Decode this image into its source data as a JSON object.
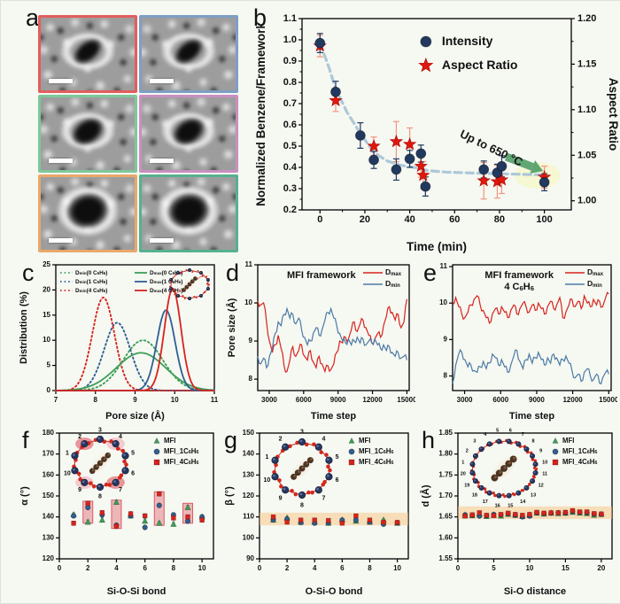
{
  "figure": {
    "panel_labels": {
      "a": "a",
      "b": "b",
      "c": "c",
      "d": "d",
      "e": "e",
      "f": "f",
      "g": "g",
      "h": "h"
    }
  },
  "colors": {
    "navy": "#22395f",
    "red": "#e3170d",
    "red_solid": "#d7231d",
    "green": "#3d9e57",
    "blue": "#2e6094",
    "steel": "#4a7aa5",
    "trend": "#adc8d9",
    "salmon": "#f2957f",
    "arrow_green": "#55a06b",
    "pink_bar": "rgba(226,103,112,0.45)",
    "pink_bar_edge": "rgba(213,80,90,0.9)",
    "orange_band": "rgba(247,196,128,0.5)",
    "halo_yellow": "rgba(246,246,190,0.6)"
  },
  "panel_a": {
    "frames": [
      {
        "border": "#e25d5d",
        "row": 1
      },
      {
        "border": "#7d9fc4",
        "row": 1
      },
      {
        "border": "#7ec89b",
        "row": 2
      },
      {
        "border": "#c98fc1",
        "row": 2
      },
      {
        "border": "#eaa86a",
        "row": 3
      },
      {
        "border": "#55b190",
        "row": 3
      }
    ]
  },
  "chart_data": [
    {
      "panel": "b",
      "type": "scatter",
      "xlabel": "Time (min)",
      "xlim": [
        -8,
        112
      ],
      "xticks": [
        0,
        20,
        40,
        60,
        80,
        100
      ],
      "xminor": [
        10,
        30,
        50,
        70,
        90
      ],
      "ylabel": "Normalized Benzene/Framework",
      "ylim": [
        0.2,
        1.1
      ],
      "yticks": [
        0.2,
        0.3,
        0.4,
        0.5,
        0.6,
        0.7,
        0.8,
        0.9,
        1.0,
        1.1
      ],
      "ydec": 1,
      "yminor": [
        0.25,
        0.35,
        0.45,
        0.55,
        0.65,
        0.75,
        0.85,
        0.95,
        1.05
      ],
      "ylabel_right": "Aspect Ratio",
      "ylim_right": [
        0.99,
        1.2
      ],
      "yticks_right": [
        1.0,
        1.05,
        1.1,
        1.15,
        1.2
      ],
      "yminor_right": [
        1.025,
        1.075,
        1.125,
        1.175
      ],
      "series": [
        {
          "name": "Intensity",
          "marker": "circle",
          "axis": "left",
          "x": [
            0,
            7,
            18,
            24,
            34,
            40,
            45,
            47,
            73,
            79,
            81,
            100
          ],
          "y": [
            0.985,
            0.755,
            0.55,
            0.435,
            0.39,
            0.44,
            0.465,
            0.31,
            0.39,
            0.375,
            0.405,
            0.33
          ],
          "err": [
            0.045,
            0.05,
            0.06,
            0.04,
            0.05,
            0.04,
            0.04,
            0.045,
            0.04,
            0.04,
            0.05,
            0.04
          ]
        },
        {
          "name": "Aspect Ratio",
          "marker": "star",
          "axis": "right",
          "x": [
            0,
            7,
            24,
            34,
            40,
            45,
            46,
            73,
            79,
            81,
            100
          ],
          "y": [
            1.17,
            1.11,
            1.06,
            1.065,
            1.062,
            1.038,
            1.028,
            1.022,
            1.021,
            1.023,
            1.026
          ],
          "err": [
            0.012,
            0.012,
            0.01,
            0.022,
            0.018,
            0.012,
            0.015,
            0.02,
            0.018,
            0.015,
            0.012
          ]
        }
      ],
      "trend": [
        [
          0,
          0.985
        ],
        [
          4,
          0.87
        ],
        [
          7,
          0.77
        ],
        [
          12,
          0.66
        ],
        [
          18,
          0.56
        ],
        [
          24,
          0.47
        ],
        [
          30,
          0.43
        ],
        [
          36,
          0.41
        ],
        [
          42,
          0.4
        ],
        [
          48,
          0.385
        ],
        [
          56,
          0.378
        ],
        [
          64,
          0.375
        ],
        [
          72,
          0.372
        ],
        [
          80,
          0.37
        ],
        [
          88,
          0.368
        ],
        [
          100,
          0.364
        ]
      ],
      "legend": [
        {
          "label": "Intensity",
          "marker": "circle"
        },
        {
          "label": "Aspect Ratio",
          "marker": "star"
        }
      ],
      "annotation": {
        "text": "Up to 650 °C",
        "rotation": 26,
        "tx": 62,
        "ty": 0.545,
        "arrow": {
          "x1": 83,
          "y1": 0.45,
          "x2": 99.5,
          "y2": 0.383
        },
        "halo": {
          "x": 97,
          "y": 0.362
        }
      }
    },
    {
      "panel": "c",
      "type": "line",
      "xlabel": "Pore size (Å)",
      "xlim": [
        7,
        11
      ],
      "xticks": [
        7,
        8,
        9,
        10,
        11
      ],
      "ylabel": "Distribution (%)",
      "ylim": [
        0,
        25
      ],
      "yticks": [
        0,
        5,
        10,
        15,
        20,
        25
      ],
      "ydec": 0,
      "curves": [
        {
          "label": "D{min}(0 C{6}H{6})",
          "color": "#3d9e57",
          "dash": true,
          "peak": 9.2,
          "sigma": 0.5,
          "amp": 10.0
        },
        {
          "label": "D{min}(1 C{6}H{6})",
          "color": "#2e6094",
          "dash": true,
          "peak": 8.55,
          "sigma": 0.33,
          "amp": 13.5
        },
        {
          "label": "D{min}(4 C{6}H{6})",
          "color": "#d7231d",
          "dash": true,
          "peak": 8.2,
          "sigma": 0.28,
          "amp": 18.5
        },
        {
          "label": "D{max}(0 C{6}H{6})",
          "color": "#3d9e57",
          "dash": false,
          "peak": 9.15,
          "sigma": 0.62,
          "amp": 7.5
        },
        {
          "label": "D{max}(1 C{6}H{6})",
          "color": "#2e6094",
          "dash": false,
          "peak": 9.78,
          "sigma": 0.23,
          "amp": 16.0
        },
        {
          "label": "D{max}(4 C{6}H{6})",
          "color": "#d7231d",
          "dash": false,
          "peak": 9.95,
          "sigma": 0.21,
          "amp": 20.3
        }
      ],
      "inset": {
        "type": "framework"
      }
    },
    {
      "panel": "d",
      "type": "line",
      "title": [
        "MFI framework"
      ],
      "xlabel": "Time step",
      "xlim": [
        2000,
        15200
      ],
      "xticks": [
        3000,
        6000,
        9000,
        12000,
        15000
      ],
      "ylabel": "Pore size (Å)",
      "ylim": [
        7.7,
        11
      ],
      "yticks": [
        8,
        9,
        10,
        11
      ],
      "ydec": 0,
      "legend": [
        {
          "label": "D{max}",
          "color": "#d7231d"
        },
        {
          "label": "D{min}",
          "color": "#4a7aa5"
        }
      ],
      "series": [
        {
          "name": "Dmax",
          "color": "#d7231d",
          "x0": 2000,
          "x1": 15000,
          "y": [
            10.05,
            9.95,
            10.0,
            9.5,
            9.0,
            8.7,
            8.9,
            9.15,
            8.8,
            8.35,
            8.2,
            8.5,
            8.85,
            8.6,
            8.75,
            8.9,
            8.6,
            8.5,
            8.75,
            8.45,
            8.3,
            8.6,
            8.4,
            8.2,
            8.35,
            8.25,
            8.4,
            8.7,
            9.0,
            8.95,
            9.1,
            9.05,
            9.3,
            9.5,
            9.25,
            9.45,
            9.55,
            9.35,
            9.15,
            8.95,
            9.05,
            9.2,
            9.1,
            9.4,
            9.65,
            9.9,
            9.75,
            9.55,
            9.7,
            9.35,
            9.5,
            10.1
          ]
        },
        {
          "name": "Dmin",
          "color": "#4a7aa5",
          "x0": 2000,
          "x1": 15000,
          "y": [
            8.6,
            8.4,
            8.55,
            8.3,
            8.6,
            8.8,
            9.2,
            9.5,
            9.4,
            9.7,
            9.85,
            9.6,
            9.7,
            9.45,
            9.6,
            9.3,
            9.1,
            8.9,
            9.0,
            9.2,
            9.35,
            9.15,
            9.3,
            9.55,
            9.75,
            9.85,
            9.6,
            9.4,
            9.2,
            9.0,
            8.95,
            9.05,
            8.9,
            9.0,
            9.1,
            8.95,
            9.05,
            8.9,
            9.0,
            8.95,
            9.05,
            8.9,
            8.8,
            8.9,
            8.75,
            8.85,
            8.7,
            8.6,
            8.7,
            8.55,
            8.6,
            8.5
          ]
        }
      ]
    },
    {
      "panel": "e",
      "type": "line",
      "title": [
        "MFI framework",
        "4 C{6}H{6}"
      ],
      "xlabel": "Time step",
      "xlim": [
        2000,
        15200
      ],
      "xticks": [
        3000,
        6000,
        9000,
        12000,
        15000
      ],
      "ylim": [
        7.6,
        11.05
      ],
      "yticks": [
        8,
        9,
        10,
        11
      ],
      "ydec": 0,
      "legend": [
        {
          "label": "D{max}",
          "color": "#d7231d"
        },
        {
          "label": "D{min}",
          "color": "#4a7aa5"
        }
      ],
      "series": [
        {
          "name": "Dmax",
          "color": "#d7231d",
          "x0": 2000,
          "x1": 15000,
          "y": [
            10.0,
            10.15,
            9.9,
            9.7,
            9.6,
            9.75,
            9.95,
            10.1,
            10.2,
            9.95,
            9.8,
            9.6,
            9.45,
            9.7,
            9.85,
            9.7,
            9.9,
            9.75,
            9.6,
            9.8,
            9.95,
            9.7,
            9.85,
            10.0,
            9.9,
            9.75,
            9.95,
            9.8,
            10.0,
            9.85,
            9.7,
            9.9,
            10.05,
            9.85,
            9.95,
            10.15,
            9.6,
            9.75,
            9.95,
            10.1,
            9.9,
            10.05,
            9.85,
            10.2,
            10.0,
            9.9,
            10.1,
            9.95,
            10.05,
            9.9,
            10.15,
            10.25
          ]
        },
        {
          "name": "Dmin",
          "color": "#4a7aa5",
          "x0": 2000,
          "x1": 15000,
          "y": [
            7.8,
            8.3,
            8.6,
            8.65,
            8.45,
            8.25,
            8.3,
            8.15,
            8.1,
            8.25,
            8.4,
            8.2,
            8.35,
            8.6,
            8.5,
            8.3,
            8.45,
            8.25,
            8.1,
            8.3,
            8.55,
            8.7,
            8.4,
            8.2,
            8.45,
            8.6,
            8.35,
            8.5,
            8.65,
            8.45,
            8.3,
            8.5,
            8.35,
            8.6,
            8.5,
            8.3,
            8.45,
            8.55,
            8.35,
            8.15,
            7.95,
            8.05,
            7.85,
            8.1,
            8.2,
            8.0,
            7.9,
            8.05,
            7.8,
            7.95,
            8.1,
            8.05
          ]
        }
      ]
    },
    {
      "panel": "f",
      "type": "scatter",
      "xlabel": "Si-O-Si bond",
      "xlim": [
        0,
        10.8
      ],
      "xticks": [
        0,
        2,
        4,
        6,
        8,
        10
      ],
      "ylabel": "α (°)",
      "ylim": [
        120,
        180
      ],
      "yticks": [
        120,
        130,
        140,
        150,
        160,
        170,
        180
      ],
      "ydec": 0,
      "categories": [
        1,
        2,
        3,
        4,
        5,
        6,
        7,
        8,
        9,
        10
      ],
      "legend": [
        {
          "label": "MFI",
          "marker": "triangle",
          "color": "#3d9e57"
        },
        {
          "label": "MFI_1C{6}H{6}",
          "marker": "circle",
          "color": "#2e6094"
        },
        {
          "label": "MFI_4C{6}H{6}",
          "marker": "square",
          "color": "#d7231d"
        }
      ],
      "series": [
        {
          "name": "MFI",
          "marker": "triangle",
          "color": "#3d9e57",
          "err": 1.0,
          "values": [
            141,
            137.5,
            138.5,
            147,
            140.5,
            138,
            137,
            136.5,
            144.5,
            140
          ]
        },
        {
          "name": "MFI_1C6H6",
          "marker": "circle",
          "color": "#2e6094",
          "err": 1.0,
          "values": [
            140.5,
            144.5,
            141,
            136,
            140.5,
            135,
            145.5,
            141,
            138,
            140
          ]
        },
        {
          "name": "MFI_4C6H6",
          "marker": "square",
          "color": "#d7231d",
          "err": 1.0,
          "values": [
            137,
            146.5,
            142,
            135.5,
            141.5,
            140.5,
            151,
            139.5,
            140,
            138.5
          ]
        }
      ],
      "vbars": [
        {
          "x": 2,
          "y1": 137,
          "y2": 147.5
        },
        {
          "x": 4,
          "y1": 134.5,
          "y2": 148
        },
        {
          "x": 7,
          "y1": 136,
          "y2": 152
        },
        {
          "x": 9,
          "y1": 137,
          "y2": 146.5
        }
      ],
      "inset": {
        "type": "ring",
        "n": 10,
        "numbered": true,
        "highlights": [
          2,
          4,
          7,
          9
        ]
      }
    },
    {
      "panel": "g",
      "type": "scatter",
      "xlabel": "O-Si-O bond",
      "xlim": [
        0,
        10.8
      ],
      "xticks": [
        0,
        2,
        4,
        6,
        8,
        10
      ],
      "ylabel": "β (°)",
      "ylim": [
        90,
        150
      ],
      "yticks": [
        90,
        100,
        110,
        120,
        130,
        140,
        150
      ],
      "ydec": 0,
      "categories": [
        1,
        2,
        3,
        4,
        5,
        6,
        7,
        8,
        9,
        10
      ],
      "band": [
        106,
        112
      ],
      "legend": [
        {
          "label": "MFI",
          "marker": "triangle",
          "color": "#3d9e57"
        },
        {
          "label": "MFI_1C{6}H{6}",
          "marker": "circle",
          "color": "#2e6094"
        },
        {
          "label": "MFI_4C{6}H{6}",
          "marker": "square",
          "color": "#d7231d"
        }
      ],
      "series": [
        {
          "name": "MFI",
          "marker": "triangle",
          "color": "#3d9e57",
          "err": 0.6,
          "values": [
            108.5,
            109.5,
            107.5,
            107.5,
            107,
            108.5,
            108,
            107.5,
            108.5,
            107
          ]
        },
        {
          "name": "MFI_1C6H6",
          "marker": "circle",
          "color": "#2e6094",
          "err": 0.6,
          "values": [
            108.7,
            109,
            107.3,
            107,
            107.2,
            108.5,
            108.5,
            107.5,
            106.5,
            107.2
          ]
        },
        {
          "name": "MFI_4C6H6",
          "marker": "square",
          "color": "#d7231d",
          "err": 0.6,
          "values": [
            110,
            107.5,
            108.5,
            108.5,
            108.3,
            107,
            110.5,
            108.5,
            107.5,
            107.4
          ]
        }
      ],
      "inset": {
        "type": "ring",
        "n": 10,
        "numbered": true,
        "highlights": []
      }
    },
    {
      "panel": "h",
      "type": "scatter",
      "xlabel": "Si-O distance",
      "xlim": [
        0,
        21.5
      ],
      "xticks": [
        0,
        5,
        10,
        15,
        20
      ],
      "ylabel": "d (Å)",
      "ylim": [
        1.55,
        1.85
      ],
      "yticks": [
        1.55,
        1.6,
        1.65,
        1.7,
        1.75,
        1.8,
        1.85
      ],
      "ydec": 2,
      "categories": [
        1,
        2,
        3,
        4,
        5,
        6,
        7,
        8,
        9,
        10,
        11,
        12,
        13,
        14,
        15,
        16,
        17,
        18,
        19,
        20
      ],
      "band": [
        1.645,
        1.675
      ],
      "legend": [
        {
          "label": "MFI",
          "marker": "triangle",
          "color": "#3d9e57"
        },
        {
          "label": "MFI_1C{6}H{6}",
          "marker": "circle",
          "color": "#2e6094"
        },
        {
          "label": "MFI_4C{6}H{6}",
          "marker": "square",
          "color": "#d7231d"
        }
      ],
      "series": [
        {
          "name": "MFI",
          "marker": "triangle",
          "color": "#3d9e57",
          "err": 0.003,
          "values": [
            1.654,
            1.653,
            1.657,
            1.651,
            1.654,
            1.652,
            1.656,
            1.654,
            1.651,
            1.654,
            1.659,
            1.657,
            1.659,
            1.658,
            1.659,
            1.661,
            1.659,
            1.658,
            1.654,
            1.656
          ]
        },
        {
          "name": "MFI_1C6H6",
          "marker": "circle",
          "color": "#2e6094",
          "err": 0.003,
          "values": [
            1.655,
            1.654,
            1.652,
            1.653,
            1.656,
            1.655,
            1.658,
            1.654,
            1.65,
            1.652,
            1.66,
            1.658,
            1.659,
            1.66,
            1.659,
            1.663,
            1.661,
            1.66,
            1.657,
            1.656
          ]
        },
        {
          "name": "MFI_4C6H6",
          "marker": "square",
          "color": "#d7231d",
          "err": 0.003,
          "values": [
            1.652,
            1.655,
            1.66,
            1.654,
            1.653,
            1.656,
            1.659,
            1.656,
            1.654,
            1.656,
            1.661,
            1.659,
            1.66,
            1.66,
            1.661,
            1.665,
            1.662,
            1.662,
            1.658,
            1.657
          ]
        }
      ],
      "inset": {
        "type": "ring",
        "n": 20,
        "numbered": true,
        "highlights": []
      }
    }
  ]
}
